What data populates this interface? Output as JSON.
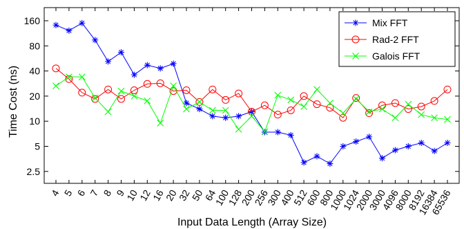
{
  "chart_data": {
    "type": "line",
    "xlabel": "Input Data Length (Array Size)",
    "ylabel": "Time Cost (ns)",
    "yscale": "log2",
    "ylim": [
      1.8,
      230
    ],
    "yticks": [
      2.5,
      5,
      10,
      20,
      40,
      80,
      160
    ],
    "ytick_labels": [
      "2.5",
      "5",
      "10",
      "20",
      "40",
      "80",
      "160"
    ],
    "grid": false,
    "legend_position": "top-right",
    "categories": [
      "4",
      "5",
      "6",
      "7",
      "8",
      "9",
      "10",
      "12",
      "16",
      "20",
      "32",
      "50",
      "64",
      "100",
      "128",
      "200",
      "256",
      "300",
      "400",
      "512",
      "600",
      "800",
      "1000",
      "1024",
      "2000",
      "3000",
      "4096",
      "8000",
      "8192",
      "16384",
      "65536"
    ],
    "series": [
      {
        "name": "Mix FFT",
        "color": "#0000ff",
        "marker": "asterisk",
        "values": [
          142,
          122,
          150,
          94,
          52,
          67,
          36,
          47,
          43,
          49,
          16.5,
          14,
          11.5,
          11,
          11.5,
          13,
          7.4,
          7.4,
          6.8,
          3.2,
          3.8,
          3.1,
          5,
          5.7,
          6.5,
          3.6,
          4.5,
          5,
          5.5,
          4.4,
          5.5
        ]
      },
      {
        "name": "Rad-2 FFT",
        "color": "#ff0000",
        "marker": "circle",
        "values": [
          43,
          32,
          22,
          18.5,
          24,
          18.5,
          23.5,
          28,
          28.5,
          23,
          23.5,
          17,
          24,
          18,
          21.5,
          13,
          15.5,
          12,
          13.5,
          20,
          16,
          14.5,
          11,
          19,
          12.5,
          15.5,
          16.5,
          14,
          15,
          17.5,
          24
        ]
      },
      {
        "name": "Galois FFT",
        "color": "#00ff00",
        "marker": "x",
        "values": [
          26.5,
          34,
          34,
          19,
          13,
          23,
          20,
          17.5,
          9.5,
          26.5,
          14,
          17,
          13.5,
          13.5,
          8,
          11.5,
          7.5,
          20.5,
          18,
          15,
          24,
          16.5,
          12.5,
          18.5,
          13,
          14,
          11,
          16,
          12,
          11,
          10.5
        ]
      }
    ]
  }
}
